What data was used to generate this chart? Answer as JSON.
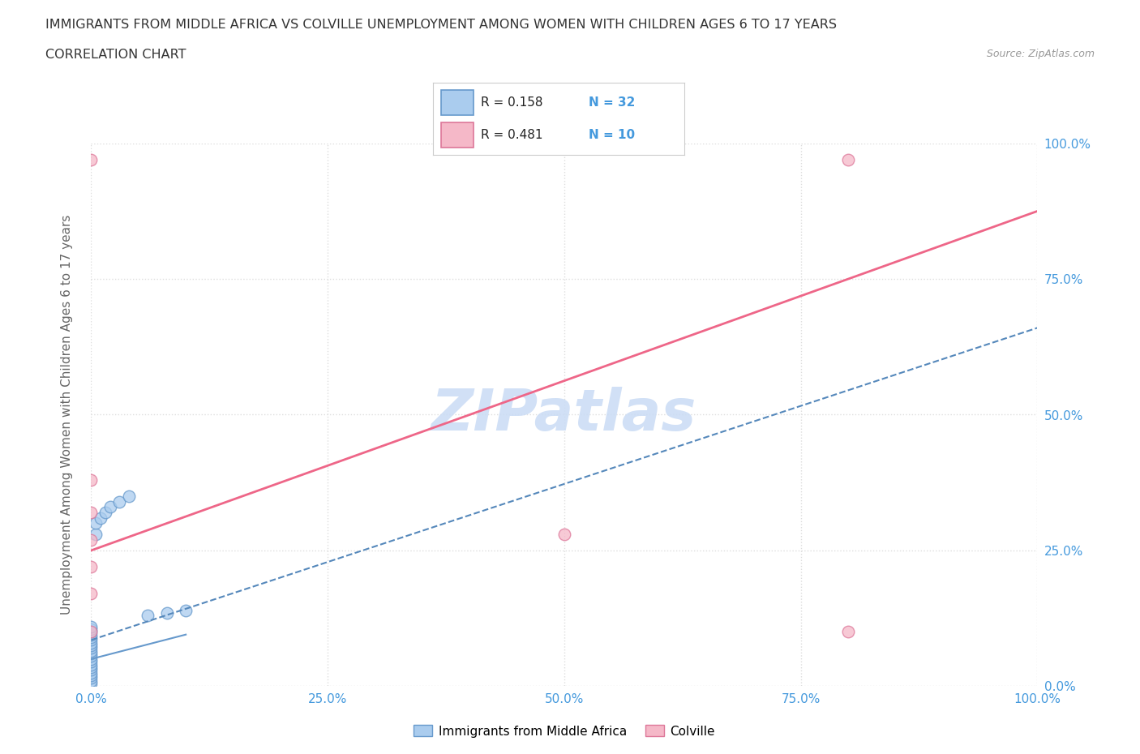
{
  "title_line1": "IMMIGRANTS FROM MIDDLE AFRICA VS COLVILLE UNEMPLOYMENT AMONG WOMEN WITH CHILDREN AGES 6 TO 17 YEARS",
  "title_line2": "CORRELATION CHART",
  "source": "Source: ZipAtlas.com",
  "ylabel": "Unemployment Among Women with Children Ages 6 to 17 years",
  "xlim": [
    0,
    1.0
  ],
  "ylim": [
    0,
    1.0
  ],
  "xtick_vals": [
    0,
    0.25,
    0.5,
    0.75,
    1.0
  ],
  "xtick_labels": [
    "0.0%",
    "25.0%",
    "50.0%",
    "75.0%",
    "100.0%"
  ],
  "ytick_vals": [
    0,
    0.25,
    0.5,
    0.75,
    1.0
  ],
  "ytick_labels": [
    "0.0%",
    "25.0%",
    "50.0%",
    "75.0%",
    "100.0%"
  ],
  "blue_scatter_x": [
    0.0,
    0.0,
    0.0,
    0.0,
    0.0,
    0.0,
    0.0,
    0.0,
    0.0,
    0.0,
    0.0,
    0.0,
    0.0,
    0.0,
    0.0,
    0.0,
    0.0,
    0.0,
    0.0,
    0.0,
    0.0,
    0.0,
    0.005,
    0.005,
    0.01,
    0.015,
    0.02,
    0.03,
    0.04,
    0.06,
    0.08,
    0.1
  ],
  "blue_scatter_y": [
    0.005,
    0.01,
    0.015,
    0.02,
    0.025,
    0.03,
    0.035,
    0.04,
    0.045,
    0.05,
    0.055,
    0.06,
    0.065,
    0.07,
    0.075,
    0.08,
    0.085,
    0.09,
    0.095,
    0.1,
    0.105,
    0.11,
    0.28,
    0.3,
    0.31,
    0.32,
    0.33,
    0.34,
    0.35,
    0.13,
    0.135,
    0.14
  ],
  "pink_scatter_x": [
    0.0,
    0.0,
    0.0,
    0.0,
    0.0,
    0.0,
    0.5,
    0.8,
    0.8,
    0.0
  ],
  "pink_scatter_y": [
    0.97,
    0.38,
    0.32,
    0.27,
    0.22,
    0.17,
    0.28,
    0.1,
    0.97,
    0.1
  ],
  "blue_R": 0.158,
  "blue_N": 32,
  "pink_R": 0.481,
  "pink_N": 10,
  "blue_scatter_color": "#aaccee",
  "blue_edge_color": "#6699cc",
  "blue_line_color": "#5588bb",
  "pink_scatter_color": "#f5b8c8",
  "pink_edge_color": "#dd7799",
  "pink_line_color": "#ee6688",
  "watermark_color": "#ccddf5",
  "legend_blue_label": "Immigrants from Middle Africa",
  "legend_pink_label": "Colville",
  "tick_color": "#4499dd",
  "ylabel_color": "#666666",
  "title_color": "#333333",
  "source_color": "#999999",
  "grid_color": "#dddddd",
  "background": "#ffffff",
  "pink_line_x0": 0.0,
  "pink_line_y0": 0.25,
  "pink_line_x1": 1.0,
  "pink_line_y1": 0.875,
  "blue_line_x0": 0.0,
  "blue_line_y0": 0.085,
  "blue_line_x1": 1.0,
  "blue_line_y1": 0.66
}
